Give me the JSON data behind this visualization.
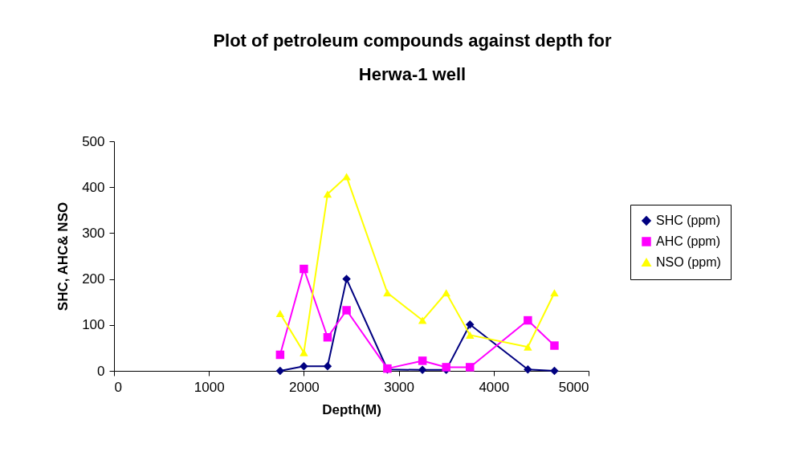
{
  "chart_data": {
    "type": "line",
    "title": "Plot of petroleum compounds against depth for\nHerwa-1 well",
    "xlabel": "Depth(M)",
    "ylabel": "SHC,  AHC& NSO",
    "series": [
      {
        "name": "SHC (ppm)",
        "color": "#000080",
        "marker": "diamond",
        "x": [
          1750,
          2000,
          2250,
          2450,
          2880,
          3250,
          3500,
          3750,
          4360,
          4640
        ],
        "values": [
          0,
          10,
          10,
          200,
          3,
          2,
          2,
          101,
          3,
          0
        ]
      },
      {
        "name": "AHC (ppm)",
        "color": "#ff00ff",
        "marker": "square",
        "x": [
          1750,
          2000,
          2250,
          2450,
          2880,
          3250,
          3500,
          3750,
          4360,
          4640
        ],
        "values": [
          35,
          222,
          73,
          132,
          5,
          22,
          8,
          8,
          110,
          55
        ]
      },
      {
        "name": "NSO (ppm)",
        "color": "#ffff00",
        "marker": "triangle",
        "x": [
          1750,
          2000,
          2250,
          2450,
          2880,
          3250,
          3500,
          3750,
          4360,
          4640
        ],
        "values": [
          125,
          40,
          385,
          423,
          170,
          110,
          170,
          78,
          52,
          170
        ]
      }
    ],
    "xlim": [
      0,
      5000
    ],
    "xticks": [
      0,
      1000,
      2000,
      3000,
      4000,
      5000
    ],
    "ylim": [
      0,
      500
    ],
    "yticks": [
      0,
      100,
      200,
      300,
      400,
      500
    ],
    "grid": false,
    "legend": "right"
  }
}
